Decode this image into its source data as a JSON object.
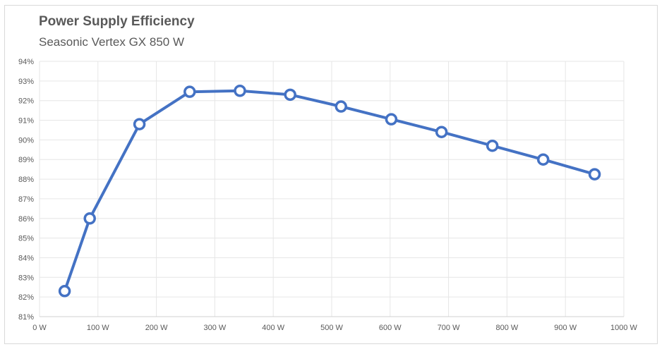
{
  "chart_data": {
    "type": "line",
    "title": "Power Supply Efficiency",
    "subtitle": "Seasonic Vertex GX 850 W",
    "xlabel": "",
    "ylabel": "",
    "xlim": [
      0,
      1000
    ],
    "ylim": [
      81,
      94
    ],
    "x_ticks": [
      0,
      100,
      200,
      300,
      400,
      500,
      600,
      700,
      800,
      900,
      1000
    ],
    "x_tick_labels": [
      "0 W",
      "100 W",
      "200 W",
      "300 W",
      "400 W",
      "500 W",
      "600 W",
      "700 W",
      "800 W",
      "900 W",
      "1000 W"
    ],
    "y_ticks": [
      81,
      82,
      83,
      84,
      85,
      86,
      87,
      88,
      89,
      90,
      91,
      92,
      93,
      94
    ],
    "y_tick_labels": [
      "81%",
      "82%",
      "83%",
      "84%",
      "85%",
      "86%",
      "87%",
      "88%",
      "89%",
      "90%",
      "91%",
      "92%",
      "93%",
      "94%"
    ],
    "grid": true,
    "legend": "none",
    "series": [
      {
        "color": "#4472c4",
        "x": [
          43,
          86,
          171,
          257,
          343,
          429,
          516,
          602,
          688,
          775,
          862,
          950
        ],
        "y": [
          82.3,
          86.0,
          90.8,
          92.45,
          92.5,
          92.3,
          91.7,
          91.05,
          90.4,
          89.7,
          89.0,
          88.25
        ]
      }
    ]
  }
}
